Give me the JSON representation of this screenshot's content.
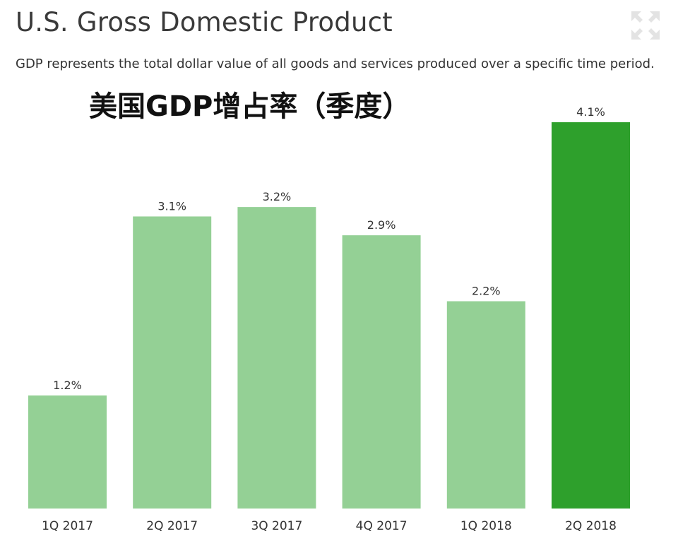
{
  "title": "U.S. Gross Domestic Product",
  "subtitle": "GDP represents the total dollar value of all goods and services produced over a specific time period.",
  "overlay_title": "美国GDP增占率（季度）",
  "icons": {
    "expand": "expand-icon"
  },
  "colors": {
    "bar": "#94d095",
    "highlight": "#2ea02c",
    "icon": "#e3e3e3"
  },
  "chart_data": {
    "type": "bar",
    "categories": [
      "1Q 2017",
      "2Q 2017",
      "3Q 2017",
      "4Q 2017",
      "1Q 2018",
      "2Q 2018"
    ],
    "values": [
      1.2,
      3.1,
      3.2,
      2.9,
      2.2,
      4.1
    ],
    "value_labels": [
      "1.2%",
      "3.1%",
      "3.2%",
      "2.9%",
      "2.2%",
      "4.1%"
    ],
    "highlight_index": 5,
    "unit": "%",
    "grid": false,
    "legend": "none"
  }
}
